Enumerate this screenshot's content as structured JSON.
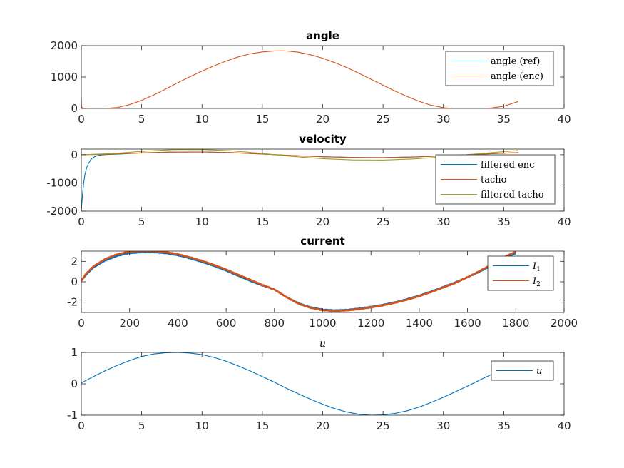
{
  "colors": {
    "blue": "#0072BD",
    "orange": "#D95319",
    "yellow": "#EDB120",
    "olive": "#A2A11E",
    "axis": "#262626",
    "background": "#ffffff"
  },
  "chart_data": [
    {
      "type": "line",
      "title": "angle",
      "title_style": "bold",
      "xlim": [
        0,
        40
      ],
      "ylim": [
        0,
        2000
      ],
      "xticks": [
        0,
        5,
        10,
        15,
        20,
        25,
        30,
        35,
        40
      ],
      "yticks": [
        0,
        1000,
        2000
      ],
      "legend_position": "top-right",
      "series": [
        {
          "name": "angle (ref)",
          "color": "#0072BD",
          "x": [
            0,
            5,
            10,
            15,
            20,
            25,
            30,
            35,
            36.2
          ],
          "y": [
            0,
            0,
            0,
            0,
            0,
            0,
            0,
            0,
            0
          ]
        },
        {
          "name": "angle (enc)",
          "color": "#D95319",
          "x": [
            0,
            0.02,
            0.2,
            1,
            2,
            3,
            4,
            5,
            6,
            7,
            8,
            9,
            10,
            11,
            12,
            13,
            14,
            15,
            16,
            16.5,
            17,
            18,
            19,
            20,
            21,
            22,
            23,
            24,
            25,
            26,
            27,
            28,
            29,
            30,
            31,
            32,
            33,
            34,
            35,
            36.2
          ],
          "y": [
            360,
            40,
            5,
            0,
            0,
            30,
            120,
            260,
            430,
            620,
            820,
            1010,
            1190,
            1360,
            1510,
            1640,
            1740,
            1800,
            1830,
            1835,
            1830,
            1790,
            1710,
            1600,
            1460,
            1300,
            1120,
            930,
            740,
            550,
            380,
            225,
            100,
            25,
            -10,
            -20,
            -15,
            15,
            70,
            220
          ]
        }
      ]
    },
    {
      "type": "line",
      "title": "velocity",
      "title_style": "bold",
      "xlim": [
        0,
        40
      ],
      "ylim": [
        -2000,
        200
      ],
      "xticks": [
        0,
        5,
        10,
        15,
        20,
        25,
        30,
        35,
        40
      ],
      "yticks": [
        -2000,
        -1000,
        0
      ],
      "legend_position": "top-right",
      "series": [
        {
          "name": "filtered enc",
          "color": "#0072BD",
          "x": [
            0,
            0.1,
            0.2,
            0.3,
            0.45,
            0.6,
            0.8,
            1.0,
            1.3,
            1.6,
            2.0,
            3,
            5,
            7.5,
            10,
            12.5,
            15,
            17.5,
            20,
            22.5,
            25,
            27.5,
            30,
            32.5,
            35,
            36.2
          ],
          "y": [
            -2000,
            -1400,
            -1000,
            -700,
            -450,
            -300,
            -170,
            -90,
            -35,
            -10,
            5,
            20,
            65,
            95,
            100,
            75,
            25,
            -30,
            -70,
            -95,
            -100,
            -80,
            -40,
            10,
            55,
            75
          ]
        },
        {
          "name": "tacho",
          "color": "#D95319",
          "x": [
            0,
            2.5,
            5,
            7.5,
            10,
            12.5,
            15,
            17.5,
            20,
            22.5,
            25,
            27.5,
            30,
            32.5,
            35,
            36.2
          ],
          "y": [
            0,
            20,
            65,
            95,
            100,
            75,
            25,
            -30,
            -70,
            -95,
            -100,
            -80,
            -40,
            10,
            55,
            75
          ]
        },
        {
          "name": "filtered tacho",
          "color": "#A2A11E",
          "x": [
            0,
            2.5,
            5,
            7.5,
            10,
            12.5,
            15,
            17.5,
            20,
            22.5,
            25,
            27.5,
            30,
            32.5,
            35,
            36.2
          ],
          "y": [
            0,
            40,
            120,
            180,
            185,
            140,
            45,
            -60,
            -140,
            -185,
            -190,
            -150,
            -75,
            20,
            110,
            150
          ]
        }
      ]
    },
    {
      "type": "line",
      "title": "current",
      "title_style": "bold",
      "xlim": [
        0,
        2000
      ],
      "ylim": [
        -3,
        3
      ],
      "xticks": [
        0,
        200,
        400,
        600,
        800,
        1000,
        1200,
        1400,
        1600,
        1800,
        2000
      ],
      "yticks": [
        -2,
        0,
        2
      ],
      "legend_position": "top-right",
      "series": [
        {
          "name": "I_1",
          "label_main": "I",
          "label_sub": "1",
          "color": "#0072BD",
          "x": [
            0,
            20,
            50,
            100,
            150,
            200,
            250,
            300,
            350,
            400,
            450,
            500,
            550,
            600,
            650,
            700,
            750,
            800,
            850,
            900,
            950,
            1000,
            1050,
            1100,
            1150,
            1200,
            1250,
            1300,
            1350,
            1400,
            1450,
            1500,
            1550,
            1600,
            1650,
            1700,
            1750,
            1800
          ],
          "y": [
            0.1,
            0.7,
            1.4,
            2.1,
            2.55,
            2.8,
            2.9,
            2.9,
            2.8,
            2.6,
            2.3,
            1.95,
            1.55,
            1.1,
            0.6,
            0.1,
            -0.35,
            -0.75,
            -1.5,
            -2.1,
            -2.5,
            -2.72,
            -2.8,
            -2.75,
            -2.62,
            -2.45,
            -2.25,
            -2.0,
            -1.7,
            -1.35,
            -0.95,
            -0.5,
            -0.05,
            0.45,
            1.0,
            1.6,
            2.3,
            2.8
          ]
        },
        {
          "name": "I_2",
          "label_main": "I",
          "label_sub": "2",
          "color": "#D95319",
          "x": [
            0,
            20,
            50,
            100,
            150,
            200,
            250,
            300,
            350,
            400,
            450,
            500,
            550,
            600,
            650,
            700,
            750,
            800,
            850,
            900,
            950,
            1000,
            1050,
            1100,
            1150,
            1200,
            1250,
            1300,
            1350,
            1400,
            1450,
            1500,
            1550,
            1600,
            1650,
            1700,
            1750,
            1800
          ],
          "y": [
            0.1,
            0.8,
            1.5,
            2.25,
            2.7,
            2.95,
            3.0,
            3.0,
            2.9,
            2.7,
            2.4,
            2.05,
            1.65,
            1.2,
            0.7,
            0.2,
            -0.3,
            -0.75,
            -1.5,
            -2.15,
            -2.55,
            -2.78,
            -2.85,
            -2.8,
            -2.68,
            -2.5,
            -2.3,
            -2.05,
            -1.75,
            -1.4,
            -1.0,
            -0.55,
            -0.1,
            0.45,
            1.05,
            1.7,
            2.4,
            2.95
          ]
        }
      ]
    },
    {
      "type": "line",
      "title": "u",
      "title_style": "italic",
      "xlim": [
        0,
        40
      ],
      "ylim": [
        -1,
        1
      ],
      "xticks": [
        0,
        5,
        10,
        15,
        20,
        25,
        30,
        35,
        40
      ],
      "yticks": [
        -1,
        0,
        1
      ],
      "legend_position": "top-right",
      "series": [
        {
          "name": "u",
          "color": "#0072BD",
          "x": [
            0,
            1,
            2,
            3,
            4,
            5,
            6,
            7,
            8,
            9,
            10,
            11,
            12,
            13,
            14,
            15,
            16,
            17,
            18,
            19,
            20,
            21,
            22,
            23,
            24,
            25,
            26,
            27,
            28,
            29,
            30,
            31,
            32,
            33,
            34,
            35,
            36.2
          ],
          "y": [
            0.03,
            0.23,
            0.42,
            0.59,
            0.74,
            0.87,
            0.95,
            0.99,
            1.0,
            0.98,
            0.93,
            0.84,
            0.72,
            0.57,
            0.41,
            0.23,
            0.05,
            -0.14,
            -0.32,
            -0.49,
            -0.65,
            -0.79,
            -0.9,
            -0.97,
            -1.0,
            -0.99,
            -0.94,
            -0.86,
            -0.74,
            -0.59,
            -0.43,
            -0.25,
            -0.07,
            0.12,
            0.3,
            0.46,
            0.63
          ]
        }
      ]
    }
  ]
}
